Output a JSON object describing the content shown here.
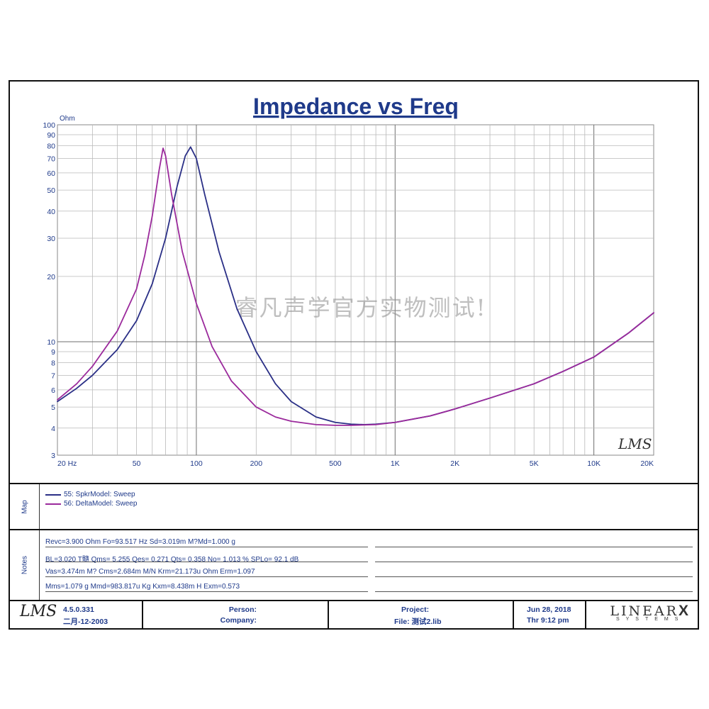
{
  "chart_data": {
    "type": "line",
    "title": "Impedance vs Freq",
    "ylabel": "Ohm",
    "xscale": "log",
    "yscale": "log",
    "xlim": [
      20,
      20000
    ],
    "ylim": [
      3,
      100
    ],
    "grid": true,
    "x_tick_labels": [
      {
        "value": 20,
        "label": "20  Hz"
      },
      {
        "value": 50,
        "label": "50"
      },
      {
        "value": 100,
        "label": "100"
      },
      {
        "value": 200,
        "label": "200"
      },
      {
        "value": 500,
        "label": "500"
      },
      {
        "value": 1000,
        "label": "1K"
      },
      {
        "value": 2000,
        "label": "2K"
      },
      {
        "value": 5000,
        "label": "5K"
      },
      {
        "value": 10000,
        "label": "10K"
      },
      {
        "value": 20000,
        "label": "20K"
      }
    ],
    "y_tick_labels": [
      {
        "value": 3,
        "label": "3"
      },
      {
        "value": 4,
        "label": "4"
      },
      {
        "value": 5,
        "label": "5"
      },
      {
        "value": 6,
        "label": "6"
      },
      {
        "value": 7,
        "label": "7"
      },
      {
        "value": 8,
        "label": "8"
      },
      {
        "value": 9,
        "label": "9"
      },
      {
        "value": 10,
        "label": "10"
      },
      {
        "value": 20,
        "label": "20"
      },
      {
        "value": 30,
        "label": "30"
      },
      {
        "value": 40,
        "label": "40"
      },
      {
        "value": 50,
        "label": "50"
      },
      {
        "value": 60,
        "label": "60"
      },
      {
        "value": 70,
        "label": "70"
      },
      {
        "value": 80,
        "label": "80"
      },
      {
        "value": 90,
        "label": "90"
      },
      {
        "value": 100,
        "label": "100"
      }
    ],
    "series": [
      {
        "name": "55: SpkrModel: Sweep",
        "color": "#2a2f86",
        "x": [
          20,
          25,
          30,
          40,
          50,
          60,
          70,
          80,
          88,
          93.5,
          100,
          110,
          130,
          160,
          200,
          250,
          300,
          400,
          500,
          600,
          700,
          800,
          1000,
          1500,
          2000,
          3000,
          5000,
          7000,
          10000,
          15000,
          20000
        ],
        "y": [
          5.3,
          6.1,
          7.0,
          9.2,
          12.5,
          18.5,
          30,
          52,
          72,
          79,
          70,
          48,
          26,
          14.2,
          9.0,
          6.4,
          5.3,
          4.5,
          4.25,
          4.17,
          4.15,
          4.17,
          4.25,
          4.55,
          4.9,
          5.5,
          6.4,
          7.3,
          8.5,
          11.0,
          13.6
        ]
      },
      {
        "name": "56: DeltaModel: Sweep",
        "color": "#9b2a9c",
        "x": [
          20,
          25,
          30,
          40,
          50,
          55,
          60,
          65,
          68,
          70,
          75,
          85,
          100,
          120,
          150,
          200,
          250,
          300,
          400,
          500,
          600,
          800,
          1000,
          1500,
          2000,
          3000,
          5000,
          7000,
          10000,
          15000,
          20000
        ],
        "y": [
          5.4,
          6.4,
          7.7,
          11.2,
          17.5,
          25,
          38,
          62,
          78,
          72,
          48,
          26,
          15,
          9.5,
          6.6,
          5.0,
          4.5,
          4.3,
          4.15,
          4.12,
          4.12,
          4.15,
          4.25,
          4.55,
          4.9,
          5.5,
          6.4,
          7.3,
          8.5,
          11.0,
          13.6
        ]
      }
    ],
    "annotations": [
      "睿凡声学官方实物测试!"
    ]
  },
  "plot_brand": "LMS",
  "map": {
    "section_label": "Map",
    "legend": [
      {
        "label": "55: SpkrModel: Sweep",
        "color": "#2a2f86"
      },
      {
        "label": "56: DeltaModel: Sweep",
        "color": "#9b2a9c"
      }
    ]
  },
  "notes": {
    "section_label": "Notes",
    "lines": [
      "Revc=3.900 Ohm  Fo=93.517 Hz  Sd=3.019m M?Md=1.000 g",
      "BL=3.020 T髓  Qms= 5.255  Qes= 0.271  Qts= 0.358  No= 1.013 %  SPLo= 92.1 dB",
      "Vas=3.474m M? Cms=2.684m M/N  Krm=21.173u Ohm  Erm=1.097",
      "Mms=1.079 g  Mmd=983.817u Kg  Kxm=8.438m H  Exm=0.573"
    ]
  },
  "footer": {
    "logo": "LMS",
    "version": "4.5.0.331",
    "date_built": "二月-12-2003",
    "person_label": "Person:",
    "company_label": "Company:",
    "project_label": "Project:",
    "file_label": "File: 测试2.lib",
    "date": "Jun 28, 2018",
    "time": "Thr  9:12 pm",
    "brand_main": "LINEAR",
    "brand_x": "X",
    "brand_sub": "SYSTEMS"
  }
}
